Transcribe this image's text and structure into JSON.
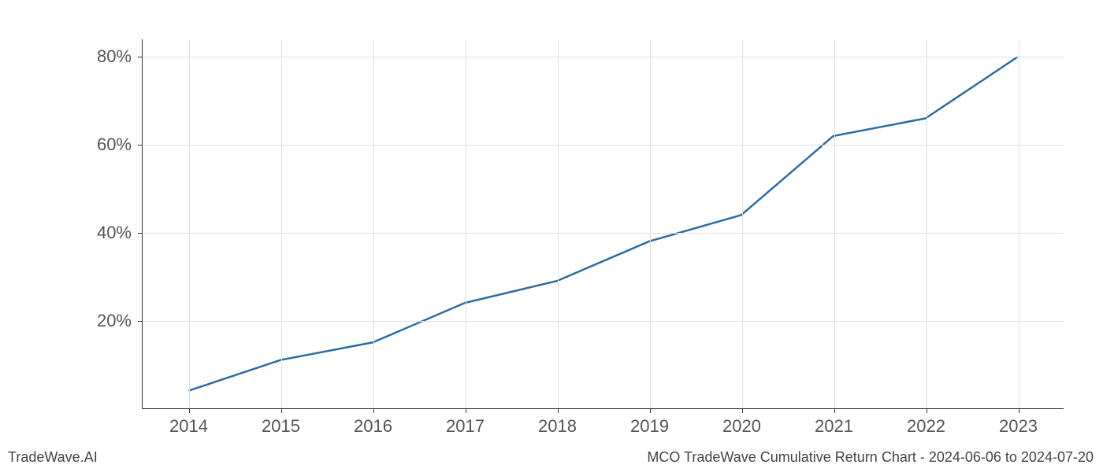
{
  "chart": {
    "type": "line",
    "x_labels": [
      "2014",
      "2015",
      "2016",
      "2017",
      "2018",
      "2019",
      "2020",
      "2021",
      "2022",
      "2023"
    ],
    "y_values": [
      4,
      11,
      15,
      24,
      29,
      38,
      44,
      62,
      66,
      80
    ],
    "y_ticks": [
      20,
      40,
      60,
      80
    ],
    "y_tick_labels": [
      "20%",
      "40%",
      "60%",
      "80%"
    ],
    "x_domain_min": 2013.5,
    "x_domain_max": 2023.5,
    "y_domain_min": 0,
    "y_domain_max": 84,
    "line_color": "#2d6ba3",
    "line_width": 2.5,
    "grid_color": "#e0e0e0",
    "axis_color": "#333333",
    "background_color": "#ffffff",
    "tick_label_color": "#555555",
    "tick_label_fontsize": 22
  },
  "footer": {
    "left": "TradeWave.AI",
    "right": "MCO TradeWave Cumulative Return Chart - 2024-06-06 to 2024-07-20",
    "fontsize": 18,
    "color": "#444444"
  }
}
